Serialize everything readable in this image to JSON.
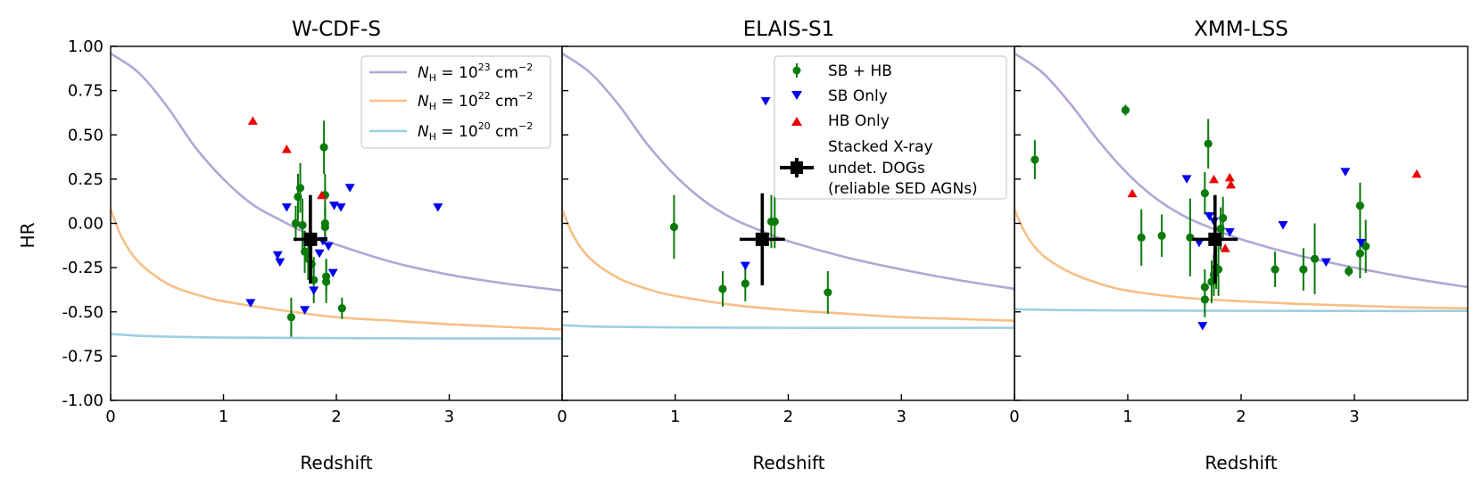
{
  "figure": {
    "ylabel": "HR",
    "xlabel": "Redshift",
    "ylim": [
      -1.0,
      1.0
    ],
    "yticks": [
      "1.00",
      "0.75",
      "0.50",
      "0.25",
      "0.00",
      "-0.25",
      "-0.50",
      "-0.75",
      "-1.00"
    ],
    "ytick_values": [
      1.0,
      0.75,
      0.5,
      0.25,
      0.0,
      -0.25,
      -0.5,
      -0.75,
      -1.0
    ]
  },
  "legend_nh": {
    "entries": [
      {
        "base": "N",
        "sub": "H",
        "mid": " = 10",
        "exp": "23",
        "unit": " cm",
        "uexp": "−2",
        "color": "#b4a5d6"
      },
      {
        "base": "N",
        "sub": "H",
        "mid": " = 10",
        "exp": "22",
        "unit": " cm",
        "uexp": "−2",
        "color": "#f7bf85"
      },
      {
        "base": "N",
        "sub": "H",
        "mid": " = 10",
        "exp": "20",
        "unit": " cm",
        "uexp": "−2",
        "color": "#9ccfe0"
      }
    ]
  },
  "legend_pts": {
    "sbhb": "SB + HB",
    "sbonly": "SB Only",
    "hbonly": "HB Only",
    "stacked_1": "Stacked X-ray",
    "stacked_2": "undet. DOGs",
    "stacked_3": "(reliable SED AGNs)"
  },
  "colors": {
    "sbhb": "#0a7a0a",
    "sbonly": "#0000ee",
    "hbonly": "#ee0000",
    "stacked": "#000000",
    "nh23": "#b4a5d6",
    "nh22": "#f7bf85",
    "nh20": "#9ccfe0"
  },
  "chart_data": [
    {
      "type": "scatter",
      "title": "W-CDF-S",
      "xlabel": "Redshift",
      "ylabel": "HR",
      "xlim": [
        0,
        4
      ],
      "ylim": [
        -1.0,
        1.0
      ],
      "xticks": [
        0,
        1,
        2,
        3
      ],
      "curves": {
        "nh23": {
          "x": [
            0,
            0.25,
            0.5,
            0.75,
            1,
            1.25,
            1.5,
            1.75,
            2,
            2.5,
            3,
            3.5,
            4
          ],
          "y": [
            0.96,
            0.85,
            0.66,
            0.43,
            0.25,
            0.11,
            0.02,
            -0.06,
            -0.12,
            -0.22,
            -0.29,
            -0.34,
            -0.38
          ]
        },
        "nh22": {
          "x": [
            0,
            0.1,
            0.25,
            0.5,
            0.75,
            1,
            1.5,
            2,
            2.5,
            3,
            3.5,
            4
          ],
          "y": [
            0.08,
            -0.08,
            -0.22,
            -0.34,
            -0.4,
            -0.44,
            -0.49,
            -0.53,
            -0.55,
            -0.57,
            -0.585,
            -0.6
          ]
        },
        "nh20": {
          "x": [
            0,
            0.25,
            0.5,
            1,
            2,
            3,
            4
          ],
          "y": [
            -0.625,
            -0.635,
            -0.64,
            -0.645,
            -0.648,
            -0.65,
            -0.65
          ]
        }
      },
      "sbhb": [
        {
          "x": 1.6,
          "y": -0.53,
          "err": 0.11
        },
        {
          "x": 1.64,
          "y": 0.0,
          "err": 0.1
        },
        {
          "x": 1.66,
          "y": 0.15,
          "err": 0.13
        },
        {
          "x": 1.68,
          "y": 0.2,
          "err": 0.14
        },
        {
          "x": 1.7,
          "y": -0.01,
          "err": 0.15
        },
        {
          "x": 1.72,
          "y": -0.16,
          "err": 0.12
        },
        {
          "x": 1.75,
          "y": -0.2,
          "err": 0.12
        },
        {
          "x": 1.78,
          "y": -0.23,
          "err": 0.1
        },
        {
          "x": 1.8,
          "y": -0.32,
          "err": 0.13
        },
        {
          "x": 1.89,
          "y": 0.43,
          "err": 0.15
        },
        {
          "x": 1.9,
          "y": 0.16,
          "err": 0.12
        },
        {
          "x": 1.9,
          "y": 0.0,
          "err": 0.1
        },
        {
          "x": 1.9,
          "y": -0.02,
          "err": 0.1
        },
        {
          "x": 1.91,
          "y": -0.3,
          "err": 0.1
        },
        {
          "x": 1.91,
          "y": -0.33,
          "err": 0.12
        },
        {
          "x": 2.05,
          "y": -0.48,
          "err": 0.06
        }
      ],
      "sbonly": [
        {
          "x": 1.24,
          "y": -0.45
        },
        {
          "x": 1.48,
          "y": -0.18
        },
        {
          "x": 1.5,
          "y": -0.22
        },
        {
          "x": 1.56,
          "y": 0.09
        },
        {
          "x": 1.72,
          "y": -0.49
        },
        {
          "x": 1.8,
          "y": -0.38
        },
        {
          "x": 1.85,
          "y": -0.17
        },
        {
          "x": 1.88,
          "y": -0.1
        },
        {
          "x": 1.93,
          "y": -0.13
        },
        {
          "x": 1.97,
          "y": -0.28
        },
        {
          "x": 1.98,
          "y": 0.1
        },
        {
          "x": 2.04,
          "y": 0.09
        },
        {
          "x": 2.12,
          "y": 0.2
        },
        {
          "x": 2.9,
          "y": 0.09
        }
      ],
      "hbonly": [
        {
          "x": 1.26,
          "y": 0.58
        },
        {
          "x": 1.56,
          "y": 0.42
        },
        {
          "x": 1.87,
          "y": 0.16
        }
      ],
      "stacked": {
        "x": 1.77,
        "y": -0.09,
        "xerr": 0.15,
        "yerr": 0.25
      }
    },
    {
      "type": "scatter",
      "title": "ELAIS-S1",
      "xlabel": "Redshift",
      "ylabel": "HR",
      "xlim": [
        0,
        4
      ],
      "ylim": [
        -1.0,
        1.0
      ],
      "xticks": [
        0,
        1,
        2,
        3
      ],
      "curves": {
        "nh23": {
          "x": [
            0,
            0.25,
            0.5,
            0.75,
            1,
            1.25,
            1.5,
            1.75,
            2,
            2.5,
            3,
            3.5,
            4
          ],
          "y": [
            0.96,
            0.85,
            0.67,
            0.45,
            0.27,
            0.13,
            0.03,
            -0.04,
            -0.1,
            -0.19,
            -0.26,
            -0.32,
            -0.37
          ]
        },
        "nh22": {
          "x": [
            0,
            0.1,
            0.25,
            0.5,
            0.75,
            1,
            1.5,
            2,
            2.5,
            3,
            3.5,
            4
          ],
          "y": [
            0.08,
            -0.07,
            -0.2,
            -0.31,
            -0.37,
            -0.41,
            -0.46,
            -0.49,
            -0.51,
            -0.53,
            -0.54,
            -0.55
          ]
        },
        "nh20": {
          "x": [
            0,
            0.25,
            0.5,
            1,
            2,
            3,
            4
          ],
          "y": [
            -0.575,
            -0.582,
            -0.585,
            -0.588,
            -0.59,
            -0.59,
            -0.59
          ]
        }
      },
      "sbhb": [
        {
          "x": 0.99,
          "y": -0.02,
          "err": 0.18
        },
        {
          "x": 1.42,
          "y": -0.37,
          "err": 0.1
        },
        {
          "x": 1.62,
          "y": -0.34,
          "err": 0.1
        },
        {
          "x": 1.85,
          "y": 0.01,
          "err": 0.15
        },
        {
          "x": 1.88,
          "y": 0.01,
          "err": 0.15
        },
        {
          "x": 2.35,
          "y": -0.39,
          "err": 0.12
        }
      ],
      "sbonly": [
        {
          "x": 1.62,
          "y": -0.24
        },
        {
          "x": 1.8,
          "y": 0.69
        }
      ],
      "hbonly": [],
      "stacked": {
        "x": 1.77,
        "y": -0.09,
        "xerr": 0.2,
        "yerr": 0.26
      }
    },
    {
      "type": "scatter",
      "title": "XMM-LSS",
      "xlabel": "Redshift",
      "ylabel": "HR",
      "xlim": [
        0,
        4
      ],
      "ylim": [
        -1.0,
        1.0
      ],
      "xticks": [
        0,
        1,
        2,
        3
      ],
      "curves": {
        "nh23": {
          "x": [
            0,
            0.25,
            0.5,
            0.75,
            1,
            1.25,
            1.5,
            1.75,
            2,
            2.5,
            3,
            3.5,
            4
          ],
          "y": [
            0.96,
            0.85,
            0.67,
            0.46,
            0.28,
            0.14,
            0.04,
            -0.03,
            -0.09,
            -0.18,
            -0.25,
            -0.31,
            -0.36
          ]
        },
        "nh22": {
          "x": [
            0,
            0.1,
            0.25,
            0.5,
            0.75,
            1,
            1.5,
            2,
            2.5,
            3,
            3.5,
            4
          ],
          "y": [
            0.08,
            -0.06,
            -0.18,
            -0.28,
            -0.34,
            -0.38,
            -0.42,
            -0.44,
            -0.455,
            -0.465,
            -0.475,
            -0.48
          ]
        },
        "nh20": {
          "x": [
            0,
            0.25,
            0.5,
            1,
            2,
            3,
            4
          ],
          "y": [
            -0.485,
            -0.488,
            -0.49,
            -0.492,
            -0.494,
            -0.495,
            -0.495
          ]
        }
      },
      "sbhb": [
        {
          "x": 0.18,
          "y": 0.36,
          "err": 0.11
        },
        {
          "x": 0.98,
          "y": 0.64,
          "err": 0.03
        },
        {
          "x": 1.12,
          "y": -0.08,
          "err": 0.16
        },
        {
          "x": 1.3,
          "y": -0.07,
          "err": 0.12
        },
        {
          "x": 1.55,
          "y": -0.08,
          "err": 0.22
        },
        {
          "x": 1.68,
          "y": 0.17,
          "err": 0.12
        },
        {
          "x": 1.71,
          "y": 0.45,
          "err": 0.14
        },
        {
          "x": 1.68,
          "y": -0.36,
          "err": 0.1
        },
        {
          "x": 1.68,
          "y": -0.43,
          "err": 0.1
        },
        {
          "x": 1.74,
          "y": -0.33,
          "err": 0.12
        },
        {
          "x": 1.76,
          "y": -0.29,
          "err": 0.12
        },
        {
          "x": 1.78,
          "y": -0.25,
          "err": 0.12
        },
        {
          "x": 1.8,
          "y": -0.26,
          "err": 0.15
        },
        {
          "x": 1.82,
          "y": -0.03,
          "err": 0.12
        },
        {
          "x": 1.84,
          "y": 0.03,
          "err": 0.12
        },
        {
          "x": 2.3,
          "y": -0.26,
          "err": 0.1
        },
        {
          "x": 2.55,
          "y": -0.26,
          "err": 0.12
        },
        {
          "x": 2.65,
          "y": -0.2,
          "err": 0.2
        },
        {
          "x": 2.95,
          "y": -0.27,
          "err": 0.03
        },
        {
          "x": 3.05,
          "y": 0.1,
          "err": 0.13
        },
        {
          "x": 3.05,
          "y": -0.17,
          "err": 0.14
        },
        {
          "x": 3.1,
          "y": -0.13,
          "err": 0.15
        }
      ],
      "sbonly": [
        {
          "x": 1.52,
          "y": 0.25
        },
        {
          "x": 1.63,
          "y": -0.11
        },
        {
          "x": 1.66,
          "y": -0.58
        },
        {
          "x": 1.72,
          "y": 0.04
        },
        {
          "x": 1.76,
          "y": 0.01
        },
        {
          "x": 1.9,
          "y": -0.05
        },
        {
          "x": 2.37,
          "y": -0.01
        },
        {
          "x": 2.75,
          "y": -0.22
        },
        {
          "x": 2.92,
          "y": 0.29
        },
        {
          "x": 3.06,
          "y": -0.11
        }
      ],
      "hbonly": [
        {
          "x": 1.04,
          "y": 0.17
        },
        {
          "x": 1.76,
          "y": 0.25
        },
        {
          "x": 1.86,
          "y": -0.14
        },
        {
          "x": 1.9,
          "y": 0.26
        },
        {
          "x": 1.91,
          "y": 0.22
        },
        {
          "x": 3.55,
          "y": 0.28
        }
      ],
      "stacked": {
        "x": 1.77,
        "y": -0.09,
        "xerr": 0.2,
        "yerr": 0.25
      }
    }
  ]
}
